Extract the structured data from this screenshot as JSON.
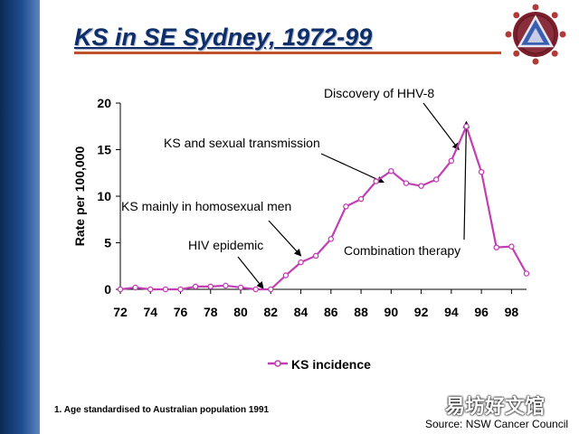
{
  "slide": {
    "title": "KS in SE Sydney, 1972-99",
    "footnote": "1. Age standardised to Australian population 1991",
    "source": "Source: NSW Cancer Council",
    "watermark": "易坊好文馆",
    "logo_icon": "triangle-emblem-icon"
  },
  "chart_data": {
    "type": "line",
    "title": "",
    "xlabel": "",
    "ylabel": "Rate per 100,000",
    "xlim": [
      72,
      99
    ],
    "ylim": [
      0,
      20
    ],
    "x_ticks": [
      "72",
      "74",
      "76",
      "78",
      "80",
      "82",
      "84",
      "86",
      "88",
      "90",
      "92",
      "94",
      "96",
      "98"
    ],
    "y_ticks": [
      "0",
      "5",
      "10",
      "15",
      "20"
    ],
    "grid": false,
    "legend_position": "bottom",
    "series": [
      {
        "name": "KS incidence",
        "color": "#c23fb3",
        "x": [
          72,
          73,
          74,
          75,
          76,
          77,
          78,
          79,
          80,
          81,
          82,
          83,
          84,
          85,
          86,
          87,
          88,
          89,
          90,
          91,
          92,
          93,
          94,
          95,
          96,
          97,
          98,
          99
        ],
        "values": [
          0.0,
          0.2,
          0.0,
          0.0,
          0.0,
          0.3,
          0.3,
          0.4,
          0.2,
          0.0,
          0.0,
          1.5,
          2.9,
          3.6,
          5.4,
          8.9,
          9.7,
          11.6,
          12.7,
          11.4,
          11.1,
          11.8,
          13.8,
          17.5,
          12.6,
          4.5,
          4.6,
          1.7
        ]
      }
    ],
    "annotations": [
      {
        "text": "Discovery of HHV-8",
        "x": 94.5,
        "y": 15.0
      },
      {
        "text": "KS and sexual transmission",
        "x": 89.5,
        "y": 11.5
      },
      {
        "text": "KS mainly in homosexual men",
        "x": 84.0,
        "y": 3.6
      },
      {
        "text": "HIV epidemic",
        "x": 81.5,
        "y": 0.1
      },
      {
        "text": "Combination therapy",
        "x": 95.0,
        "y": 18.0
      }
    ]
  }
}
